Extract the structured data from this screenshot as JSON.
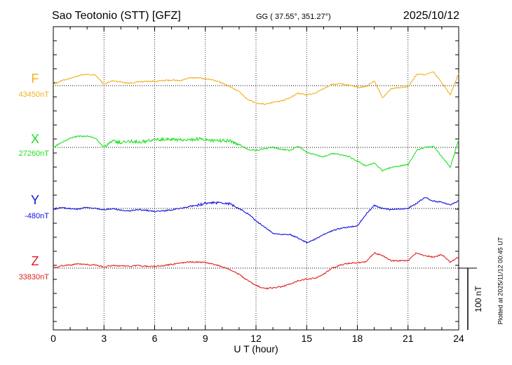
{
  "header": {
    "station": "Sao Teotonio (STT)  [GFZ]",
    "coords": "GG ( 37.55°, 351.27°)",
    "date": "2025/10/12"
  },
  "footer": {
    "plotted": "Plotted at 2025/11/12 00:45 UT"
  },
  "chart_data": {
    "type": "line",
    "xlabel": "U T (hour)",
    "xlim": [
      0,
      24
    ],
    "xticks": [
      "0",
      "3",
      "6",
      "9",
      "12",
      "15",
      "18",
      "21",
      "24"
    ],
    "scale_bar": {
      "value": 100,
      "label": "100 nT"
    },
    "grid": true,
    "series": [
      {
        "name": "F",
        "baseline": "43450nT",
        "color": "#f0b020",
        "x": [
          0,
          0.5,
          1,
          1.5,
          2,
          2.5,
          3,
          3.5,
          4,
          4.5,
          5,
          5.5,
          6,
          6.5,
          7,
          7.5,
          8,
          8.5,
          9,
          9.5,
          10,
          10.5,
          11,
          11.5,
          12,
          12.5,
          13,
          13.5,
          14,
          14.5,
          15,
          15.5,
          16,
          16.5,
          17,
          17.5,
          18,
          18.5,
          19,
          19.5,
          20,
          20.5,
          21,
          21.5,
          22,
          22.5,
          23,
          23.5,
          24
        ],
        "values": [
          2,
          8,
          12,
          16,
          18,
          17,
          2,
          8,
          6,
          4,
          6,
          7,
          7,
          8,
          9,
          8,
          12,
          13,
          11,
          9,
          4,
          -2,
          -10,
          -22,
          -28,
          -30,
          -27,
          -25,
          -20,
          -12,
          -15,
          -12,
          -5,
          2,
          3,
          1,
          -3,
          -2,
          8,
          -20,
          -5,
          -3,
          -2,
          18,
          18,
          22,
          5,
          -15,
          20
        ]
      },
      {
        "name": "X",
        "baseline": "27260nT",
        "color": "#20e020",
        "x": [
          0,
          0.5,
          1,
          1.5,
          2,
          2.5,
          3,
          3.5,
          4,
          4.5,
          5,
          5.5,
          6,
          6.5,
          7,
          7.5,
          8,
          8.5,
          9,
          9.5,
          10,
          10.5,
          11,
          11.5,
          12,
          12.5,
          13,
          13.5,
          14,
          14.5,
          15,
          15.5,
          16,
          16.5,
          17,
          17.5,
          18,
          18.5,
          19,
          19.5,
          20,
          20.5,
          21,
          21.5,
          22,
          22.5,
          23,
          23.5,
          24
        ],
        "values": [
          0,
          8,
          15,
          18,
          18,
          15,
          0,
          10,
          8,
          10,
          9,
          10,
          12,
          13,
          13,
          12,
          12,
          14,
          13,
          11,
          11,
          10,
          5,
          -3,
          -5,
          -2,
          0,
          -3,
          -5,
          2,
          -8,
          -12,
          -15,
          -10,
          -12,
          -15,
          -22,
          -30,
          -25,
          -38,
          -32,
          -30,
          -28,
          -5,
          0,
          2,
          -15,
          -32,
          12
        ]
      },
      {
        "name": "Y",
        "baseline": "-480nT",
        "color": "#1010e0",
        "x": [
          0,
          0.5,
          1,
          1.5,
          2,
          2.5,
          3,
          3.5,
          4,
          4.5,
          5,
          5.5,
          6,
          6.5,
          7,
          7.5,
          8,
          8.5,
          9,
          9.5,
          10,
          10.5,
          11,
          11.5,
          12,
          12.5,
          13,
          13.5,
          14,
          14.5,
          15,
          15.5,
          16,
          16.5,
          17,
          17.5,
          18,
          18.5,
          19,
          19.5,
          20,
          20.5,
          21,
          21.5,
          22,
          22.5,
          23,
          23.5,
          24
        ],
        "values": [
          0,
          1,
          0,
          -1,
          2,
          0,
          -2,
          0,
          -3,
          -4,
          -2,
          -3,
          -5,
          -4,
          -2,
          0,
          3,
          5,
          8,
          9,
          10,
          7,
          0,
          -8,
          -20,
          -30,
          -40,
          -42,
          -42,
          -48,
          -55,
          -50,
          -42,
          -36,
          -32,
          -30,
          -28,
          -10,
          5,
          0,
          -2,
          -1,
          0,
          8,
          18,
          12,
          10,
          6,
          12
        ]
      },
      {
        "name": "Z",
        "baseline": "33830nT",
        "color": "#e02020",
        "x": [
          0,
          0.5,
          1,
          1.5,
          2,
          2.5,
          3,
          3.5,
          4,
          4.5,
          5,
          5.5,
          6,
          6.5,
          7,
          7.5,
          8,
          8.5,
          9,
          9.5,
          10,
          10.5,
          11,
          11.5,
          12,
          12.5,
          13,
          13.5,
          14,
          14.5,
          15,
          15.5,
          16,
          16.5,
          17,
          17.5,
          18,
          18.5,
          19,
          19.5,
          20,
          20.5,
          21,
          21.5,
          22,
          22.5,
          23,
          23.5,
          24
        ],
        "values": [
          0,
          4,
          5,
          7,
          6,
          5,
          2,
          4,
          4,
          3,
          4,
          3,
          3,
          4,
          6,
          8,
          10,
          10,
          9,
          6,
          2,
          -3,
          -10,
          -20,
          -28,
          -33,
          -32,
          -30,
          -26,
          -20,
          -18,
          -16,
          -10,
          0,
          5,
          8,
          9,
          10,
          25,
          20,
          12,
          12,
          12,
          25,
          20,
          18,
          22,
          10,
          18
        ]
      }
    ]
  }
}
